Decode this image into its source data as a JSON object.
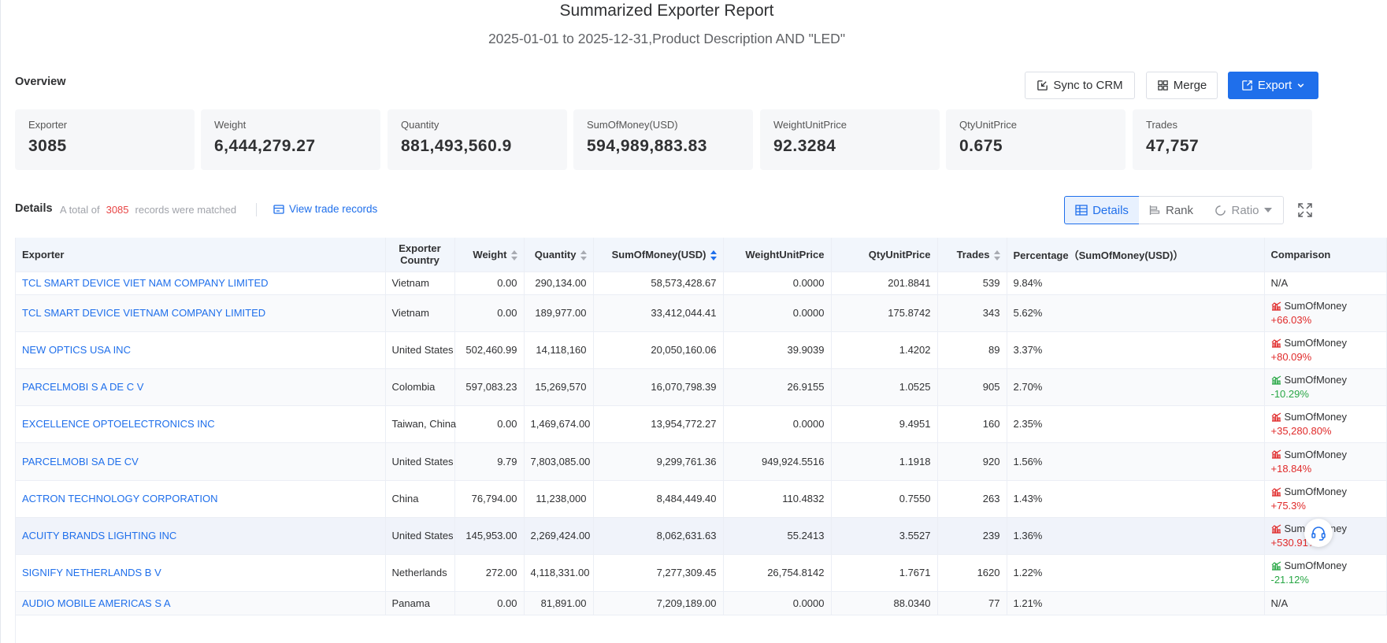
{
  "report": {
    "title": "Summarized Exporter Report",
    "subtitle": "2025-01-01 to 2025-12-31,Product Description AND \"LED\""
  },
  "overview": {
    "label": "Overview",
    "actions": {
      "sync": "Sync to CRM",
      "merge": "Merge",
      "export": "Export"
    },
    "stats": [
      {
        "label": "Exporter",
        "value": "3085"
      },
      {
        "label": "Weight",
        "value": "6,444,279.27"
      },
      {
        "label": "Quantity",
        "value": "881,493,560.9"
      },
      {
        "label": "SumOfMoney(USD)",
        "value": "594,989,883.83"
      },
      {
        "label": "WeightUnitPrice",
        "value": "92.3284"
      },
      {
        "label": "QtyUnitPrice",
        "value": "0.675"
      },
      {
        "label": "Trades",
        "value": "47,757"
      }
    ]
  },
  "details": {
    "label": "Details",
    "info_prefix": "A total of",
    "count": "3085",
    "info_suffix": "records were matched",
    "view_link": "View trade records",
    "views": {
      "details": "Details",
      "rank": "Rank",
      "ratio": "Ratio"
    }
  },
  "table": {
    "columns": {
      "exporter": "Exporter",
      "country_line1": "Exporter",
      "country_line2": "Country",
      "weight": "Weight",
      "quantity": "Quantity",
      "money": "SumOfMoney(USD)",
      "wup": "WeightUnitPrice",
      "qup": "QtyUnitPrice",
      "trades": "Trades",
      "percentage": "Percentage（SumOfMoney(USD)）",
      "comparison": "Comparison"
    },
    "rows": [
      {
        "exporter": "TCL SMART DEVICE VIET NAM COMPANY LIMITED",
        "country": "Vietnam",
        "weight": "0.00",
        "quantity": "290,134.00",
        "money": "58,573,428.67",
        "wup": "0.0000",
        "qup": "201.8841",
        "trades": "539",
        "pct": "9.84%",
        "cmp_label": "N/A",
        "cmp_value": "",
        "trend": "none"
      },
      {
        "exporter": "TCL SMART DEVICE VIETNAM COMPANY LIMITED",
        "country": "Vietnam",
        "weight": "0.00",
        "quantity": "189,977.00",
        "money": "33,412,044.41",
        "wup": "0.0000",
        "qup": "175.8742",
        "trades": "343",
        "pct": "5.62%",
        "cmp_label": "SumOfMoney",
        "cmp_value": "+66.03%",
        "trend": "up"
      },
      {
        "exporter": "NEW OPTICS USA INC",
        "country": "United States",
        "weight": "502,460.99",
        "quantity": "14,118,160",
        "money": "20,050,160.06",
        "wup": "39.9039",
        "qup": "1.4202",
        "trades": "89",
        "pct": "3.37%",
        "cmp_label": "SumOfMoney",
        "cmp_value": "+80.09%",
        "trend": "up"
      },
      {
        "exporter": "PARCELMOBI S A DE C V",
        "country": "Colombia",
        "weight": "597,083.23",
        "quantity": "15,269,570",
        "money": "16,070,798.39",
        "wup": "26.9155",
        "qup": "1.0525",
        "trades": "905",
        "pct": "2.70%",
        "cmp_label": "SumOfMoney",
        "cmp_value": "-10.29%",
        "trend": "down"
      },
      {
        "exporter": "EXCELLENCE OPTOELECTRONICS INC",
        "country": "Taiwan, China",
        "weight": "0.00",
        "quantity": "1,469,674.00",
        "money": "13,954,772.27",
        "wup": "0.0000",
        "qup": "9.4951",
        "trades": "160",
        "pct": "2.35%",
        "cmp_label": "SumOfMoney",
        "cmp_value": "+35,280.80%",
        "trend": "up"
      },
      {
        "exporter": "PARCELMOBI SA DE CV",
        "country": "United States",
        "weight": "9.79",
        "quantity": "7,803,085.00",
        "money": "9,299,761.36",
        "wup": "949,924.5516",
        "qup": "1.1918",
        "trades": "920",
        "pct": "1.56%",
        "cmp_label": "SumOfMoney",
        "cmp_value": "+18.84%",
        "trend": "up"
      },
      {
        "exporter": "ACTRON TECHNOLOGY CORPORATION",
        "country": "China",
        "weight": "76,794.00",
        "quantity": "11,238,000",
        "money": "8,484,449.40",
        "wup": "110.4832",
        "qup": "0.7550",
        "trades": "263",
        "pct": "1.43%",
        "cmp_label": "SumOfMoney",
        "cmp_value": "+75.3%",
        "trend": "up"
      },
      {
        "exporter": "ACUITY BRANDS LIGHTING INC",
        "country": "United States",
        "weight": "145,953.00",
        "quantity": "2,269,424.00",
        "money": "8,062,631.63",
        "wup": "55.2413",
        "qup": "3.5527",
        "trades": "239",
        "pct": "1.36%",
        "cmp_label": "SumOfMoney",
        "cmp_value": "+530.91%",
        "trend": "up"
      },
      {
        "exporter": "SIGNIFY NETHERLANDS B V",
        "country": "Netherlands",
        "weight": "272.00",
        "quantity": "4,118,331.00",
        "money": "7,277,309.45",
        "wup": "26,754.8142",
        "qup": "1.7671",
        "trades": "1620",
        "pct": "1.22%",
        "cmp_label": "SumOfMoney",
        "cmp_value": "-21.12%",
        "trend": "down"
      },
      {
        "exporter": "AUDIO MOBILE AMERICAS S A",
        "country": "Panama",
        "weight": "0.00",
        "quantity": "81,891.00",
        "money": "7,209,189.00",
        "wup": "0.0000",
        "qup": "88.0340",
        "trades": "77",
        "pct": "1.21%",
        "cmp_label": "N/A",
        "cmp_value": "",
        "trend": "none"
      }
    ]
  },
  "colors": {
    "accent": "#1f6feb",
    "up": "#e02a2a",
    "down": "#28a745",
    "count": "#e84545"
  }
}
